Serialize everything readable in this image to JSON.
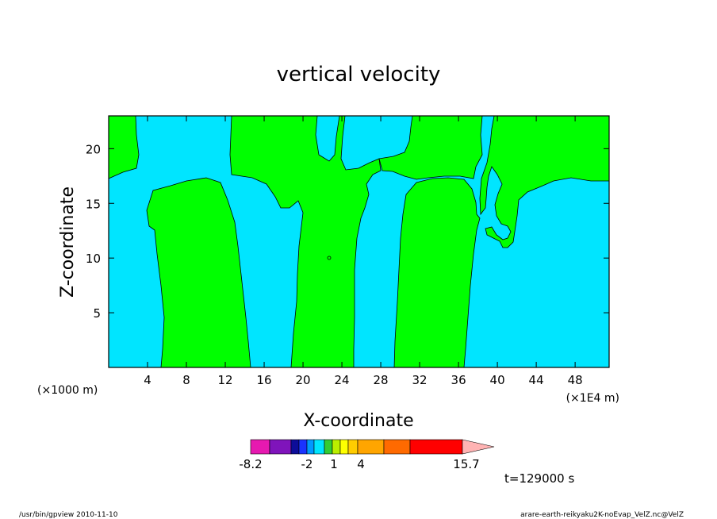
{
  "chart_data": {
    "type": "heatmap",
    "title": "vertical velocity",
    "xlabel": "X-coordinate",
    "ylabel": "Z-coordinate",
    "x_unit_left": "(×1000 m)",
    "x_unit_right": "(×1E4 m)",
    "xlim": [
      0,
      51.5
    ],
    "ylim": [
      0,
      23
    ],
    "x_ticks": [
      4,
      8,
      12,
      16,
      20,
      24,
      28,
      32,
      36,
      40,
      44,
      48
    ],
    "y_ticks": [
      5,
      10,
      15,
      20
    ],
    "time_label": "t=129000 s",
    "colorbar": {
      "ticks": [
        {
          "label": "-8.2",
          "value": -8.2
        },
        {
          "label": "-2",
          "value": -2
        },
        {
          "label": "1",
          "value": 1
        },
        {
          "label": "4",
          "value": 4
        },
        {
          "label": "15.7",
          "value": 15.7
        }
      ],
      "bins": [
        {
          "color": "#e619b0"
        },
        {
          "color": "#7f14bb"
        },
        {
          "color": "#0d0d99"
        },
        {
          "color": "#1a33ff"
        },
        {
          "color": "#0099ff"
        },
        {
          "color": "#00e5ff"
        },
        {
          "color": "#33cc33"
        },
        {
          "color": "#bbee00"
        },
        {
          "color": "#ffff00"
        },
        {
          "color": "#ffcc00"
        },
        {
          "color": "#ffa500"
        },
        {
          "color": "#ff6a00"
        },
        {
          "color": "#ff0000"
        },
        {
          "color": "#ff7f7f"
        },
        {
          "color": "#ffb3b3"
        }
      ]
    },
    "regions": [
      {
        "level": "positive",
        "color": "#00ff00"
      },
      {
        "level": "negative",
        "color": "#00e5ff"
      }
    ]
  },
  "footer": {
    "left": "/usr/bin/gpview  2010-11-10",
    "right": "arare-earth-reikyaku2K-noEvap_VelZ.nc@VelZ"
  }
}
